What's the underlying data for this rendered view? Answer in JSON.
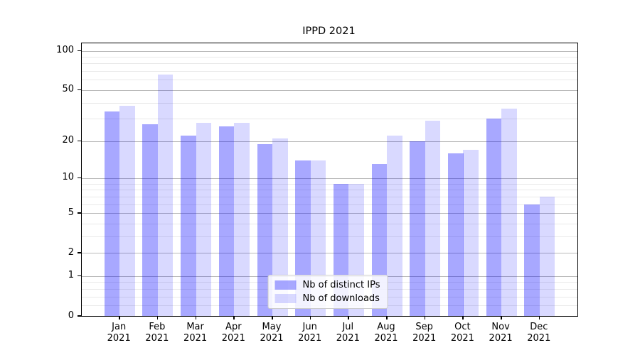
{
  "chart_data": {
    "type": "bar",
    "title": "IPPD 2021",
    "categories": [
      {
        "month": "Jan",
        "year": "2021"
      },
      {
        "month": "Feb",
        "year": "2021"
      },
      {
        "month": "Mar",
        "year": "2021"
      },
      {
        "month": "Apr",
        "year": "2021"
      },
      {
        "month": "May",
        "year": "2021"
      },
      {
        "month": "Jun",
        "year": "2021"
      },
      {
        "month": "Jul",
        "year": "2021"
      },
      {
        "month": "Aug",
        "year": "2021"
      },
      {
        "month": "Sep",
        "year": "2021"
      },
      {
        "month": "Oct",
        "year": "2021"
      },
      {
        "month": "Nov",
        "year": "2021"
      },
      {
        "month": "Dec",
        "year": "2021"
      }
    ],
    "series": [
      {
        "name": "Nb of distinct IPs",
        "color": "rgba(0,0,255,0.34)",
        "values": [
          34,
          27,
          22,
          26,
          19,
          14,
          9,
          13,
          20,
          16,
          30,
          6
        ]
      },
      {
        "name": "Nb of downloads",
        "color": "rgba(0,0,255,0.15)",
        "values": [
          38,
          66,
          28,
          28,
          21,
          14,
          9,
          22,
          29,
          17,
          36,
          7
        ]
      }
    ],
    "yscale": "log1p",
    "yticks": [
      0,
      1,
      2,
      5,
      10,
      20,
      50,
      100
    ],
    "minor_yticks": [
      0.2,
      0.4,
      0.6,
      0.8,
      3,
      4,
      6,
      7,
      8,
      9,
      30,
      40,
      60,
      70,
      80,
      90
    ],
    "ylim": [
      0,
      114
    ],
    "grid": "on",
    "legend_position": "lower center"
  },
  "colors": {
    "background": "#ffffff",
    "frame": "#000000",
    "major_grid": "#b8b8b8",
    "minor_grid": "#e9e9e9"
  }
}
